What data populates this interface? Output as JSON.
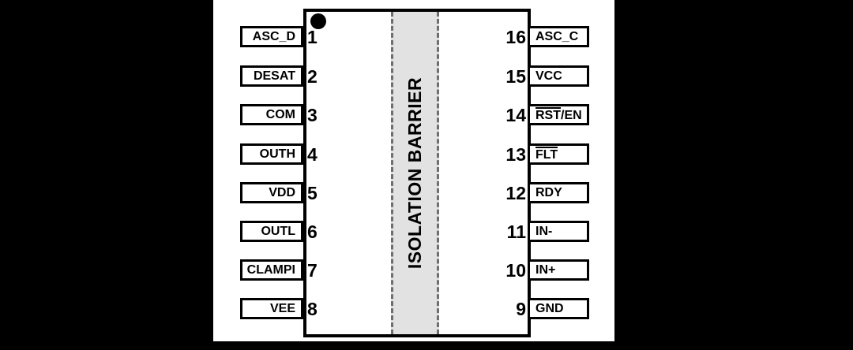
{
  "diagram": {
    "type": "ic-pinout",
    "barrier_label": "ISOLATION BARRIER",
    "pin1_marker": "dot",
    "colors": {
      "page_background": "#000000",
      "figure_background": "#ffffff",
      "outline": "#000000",
      "barrier_fill": "#e2e2e2",
      "barrier_dash": "#6e6e6e",
      "text": "#000000"
    },
    "left_pins": [
      {
        "num": "1",
        "label": "ASC_D"
      },
      {
        "num": "2",
        "label": "DESAT"
      },
      {
        "num": "3",
        "label": "COM"
      },
      {
        "num": "4",
        "label": "OUTH"
      },
      {
        "num": "5",
        "label": "VDD"
      },
      {
        "num": "6",
        "label": "OUTL"
      },
      {
        "num": "7",
        "label": "CLAMPI"
      },
      {
        "num": "8",
        "label": "VEE"
      }
    ],
    "right_pins": [
      {
        "num": "16",
        "label": "ASC_C"
      },
      {
        "num": "15",
        "label": "VCC"
      },
      {
        "num": "14",
        "label": "RST/EN",
        "bar": "RST",
        "post": "/EN"
      },
      {
        "num": "13",
        "label": "FLT",
        "bar": "FLT",
        "post": ""
      },
      {
        "num": "12",
        "label": "RDY"
      },
      {
        "num": "11",
        "label": "IN-"
      },
      {
        "num": "10",
        "label": "IN+"
      },
      {
        "num": "9",
        "label": "GND"
      }
    ]
  }
}
